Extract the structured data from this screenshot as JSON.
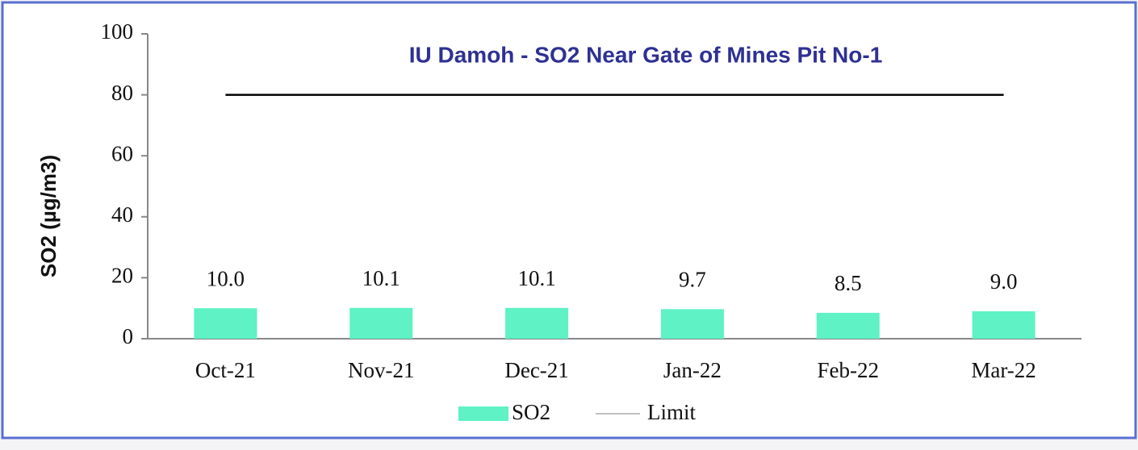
{
  "chart_data": {
    "type": "bar",
    "title": "IU Damoh - SO2  Near Gate of Mines Pit No-1",
    "y_label": "SO2 (µg/m3)",
    "categories": [
      "Oct-21",
      "Nov-21",
      "Dec-21",
      "Jan-22",
      "Feb-22",
      "Mar-22"
    ],
    "series": [
      {
        "name": "SO2",
        "type": "bar",
        "color": "#5ef2c4",
        "values": [
          10.0,
          10.1,
          10.1,
          9.7,
          8.5,
          9.0
        ],
        "value_labels": [
          "10.0",
          "10.1",
          "10.1",
          "9.7",
          "8.5",
          "9.0"
        ]
      },
      {
        "name": "Limit",
        "type": "line",
        "color": "#000000",
        "values": [
          80,
          80,
          80,
          80,
          80,
          80
        ]
      }
    ],
    "ylim": [
      0,
      100
    ],
    "yticks": [
      0,
      20,
      40,
      60,
      80,
      100
    ],
    "grid": false,
    "legend": "bottom"
  }
}
